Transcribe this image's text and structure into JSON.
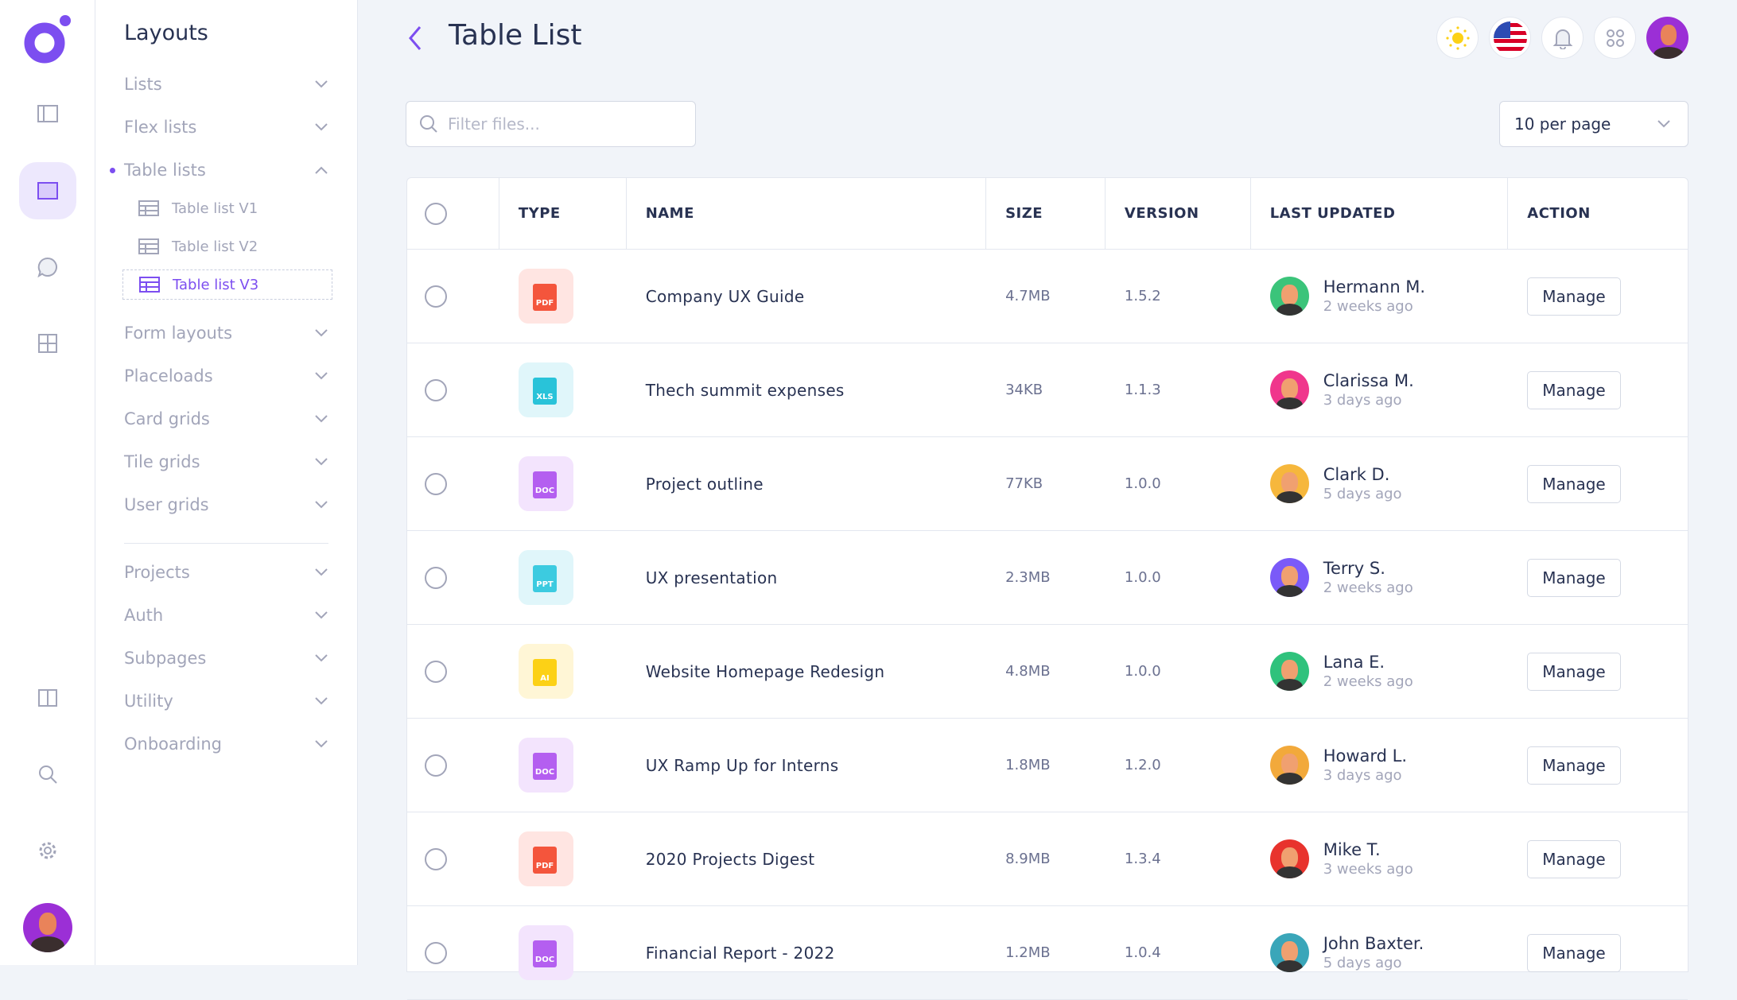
{
  "colors": {
    "accent": "#7c4ef0",
    "background": "#f1f4f9"
  },
  "subnav": {
    "title": "Layouts",
    "items": [
      {
        "label": "Lists",
        "state": "collapsed"
      },
      {
        "label": "Flex lists",
        "state": "collapsed"
      },
      {
        "label": "Table lists",
        "state": "expanded"
      },
      {
        "label": "Form layouts",
        "state": "collapsed"
      },
      {
        "label": "Placeloads",
        "state": "collapsed"
      },
      {
        "label": "Card grids",
        "state": "collapsed"
      },
      {
        "label": "Tile grids",
        "state": "collapsed"
      },
      {
        "label": "User grids",
        "state": "collapsed"
      },
      {
        "label": "Projects",
        "state": "collapsed"
      },
      {
        "label": "Auth",
        "state": "collapsed"
      },
      {
        "label": "Subpages",
        "state": "collapsed"
      },
      {
        "label": "Utility",
        "state": "collapsed"
      },
      {
        "label": "Onboarding",
        "state": "collapsed"
      }
    ],
    "subitems": [
      {
        "label": "Table list V1"
      },
      {
        "label": "Table list V2"
      },
      {
        "label": "Table list V3",
        "active": true
      }
    ]
  },
  "header": {
    "title": "Table List"
  },
  "filter": {
    "placeholder": "Filter files..."
  },
  "per_page": {
    "value": "10 per page"
  },
  "table": {
    "headers": [
      "TYPE",
      "NAME",
      "SIZE",
      "VERSION",
      "LAST UPDATED",
      "ACTION"
    ],
    "rows": [
      {
        "type": "PDF",
        "name": "Company UX Guide",
        "size": "4.7MB",
        "version": "1.5.2",
        "user": "Hermann M.",
        "time": "2 weeks ago",
        "action": "Manage",
        "av": "#3bc47a"
      },
      {
        "type": "XLS",
        "name": "Thech summit expenses",
        "size": "34KB",
        "version": "1.1.3",
        "user": "Clarissa M.",
        "time": "3 days ago",
        "action": "Manage",
        "av": "#f0368c"
      },
      {
        "type": "DOC",
        "name": "Project outline",
        "size": "77KB",
        "version": "1.0.0",
        "user": "Clark D.",
        "time": "5 days ago",
        "action": "Manage",
        "av": "#f6b73c"
      },
      {
        "type": "PPT",
        "name": "UX presentation",
        "size": "2.3MB",
        "version": "1.0.0",
        "user": "Terry S.",
        "time": "2 weeks ago",
        "action": "Manage",
        "av": "#7a5af8"
      },
      {
        "type": "AI",
        "name": "Website Homepage Redesign",
        "size": "4.8MB",
        "version": "1.0.0",
        "user": "Lana E.",
        "time": "2 weeks ago",
        "action": "Manage",
        "av": "#2fc27c"
      },
      {
        "type": "DOC",
        "name": "UX Ramp Up for Interns",
        "size": "1.8MB",
        "version": "1.2.0",
        "user": "Howard L.",
        "time": "3 days ago",
        "action": "Manage",
        "av": "#f2a93b"
      },
      {
        "type": "PDF",
        "name": "2020 Projects Digest",
        "size": "8.9MB",
        "version": "1.3.4",
        "user": "Mike T.",
        "time": "3 weeks ago",
        "action": "Manage",
        "av": "#e8332d"
      },
      {
        "type": "DOC",
        "name": "Financial Report - 2022",
        "size": "1.2MB",
        "version": "1.0.4",
        "user": "John Baxter.",
        "time": "5 days ago",
        "action": "Manage",
        "av": "#3aa6b9"
      }
    ]
  }
}
